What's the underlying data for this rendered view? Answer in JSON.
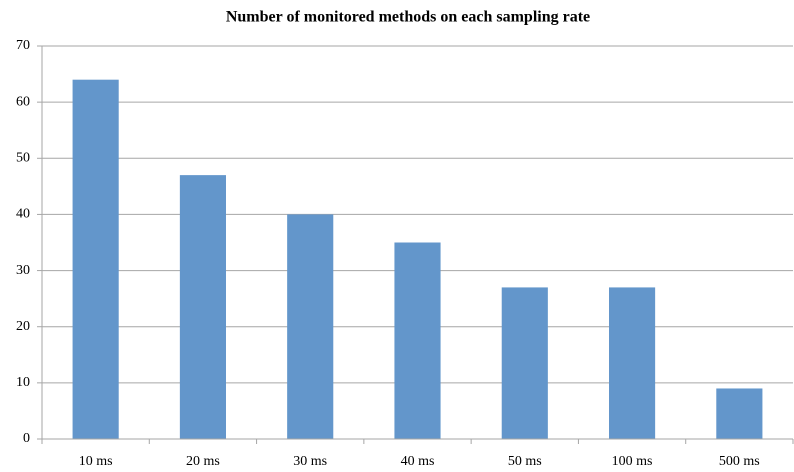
{
  "chart_data": {
    "type": "bar",
    "title": "Number of monitored methods on each sampling rate",
    "categories": [
      "10 ms",
      "20 ms",
      "30 ms",
      "40 ms",
      "50 ms",
      "100 ms",
      "500 ms"
    ],
    "values": [
      64,
      47,
      40,
      35,
      27,
      27,
      9
    ],
    "color": "#6396cb",
    "ylim": [
      0,
      70
    ],
    "yticks": [
      0,
      10,
      20,
      30,
      40,
      50,
      60,
      70
    ],
    "grid": true
  }
}
